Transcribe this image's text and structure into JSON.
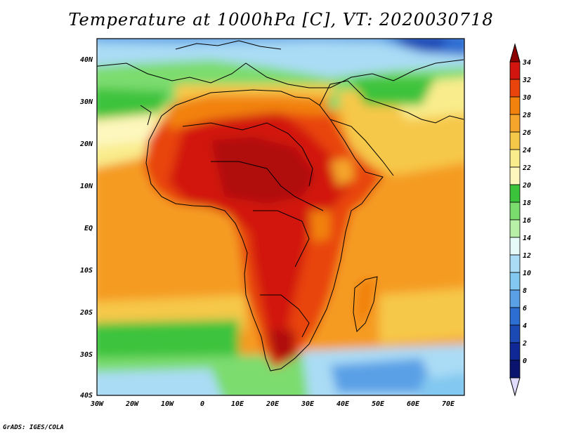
{
  "title": "Temperature at 1000hPa [C], VT: 2020030718",
  "credit": "GrADS: IGES/COLA",
  "map": {
    "lat_labels": [
      "40N",
      "30N",
      "20N",
      "10N",
      "EQ",
      "10S",
      "20S",
      "30S",
      "40S"
    ],
    "lon_labels": [
      "30W",
      "20W",
      "10W",
      "0",
      "10E",
      "20E",
      "30E",
      "40E",
      "50E",
      "60E",
      "70E"
    ],
    "lon_range": [
      -30,
      75
    ],
    "lat_range": [
      -40,
      45
    ]
  },
  "colorbar": {
    "labels": [
      "34",
      "32",
      "30",
      "28",
      "26",
      "24",
      "22",
      "20",
      "18",
      "16",
      "14",
      "12",
      "10",
      "8",
      "6",
      "4",
      "2",
      "0"
    ],
    "colors": [
      "#8b0000",
      "#d2160f",
      "#e8440c",
      "#f2820e",
      "#f5a52c",
      "#f6c84a",
      "#f9ec8c",
      "#fdf7be",
      "#3cc33c",
      "#7bdc6e",
      "#b8f0a8",
      "#e6fbf8",
      "#aadcf5",
      "#82c8f0",
      "#5aa0e6",
      "#2d6ed2",
      "#1c4ab4",
      "#102896",
      "#0a146e",
      "#e0dcff"
    ]
  }
}
